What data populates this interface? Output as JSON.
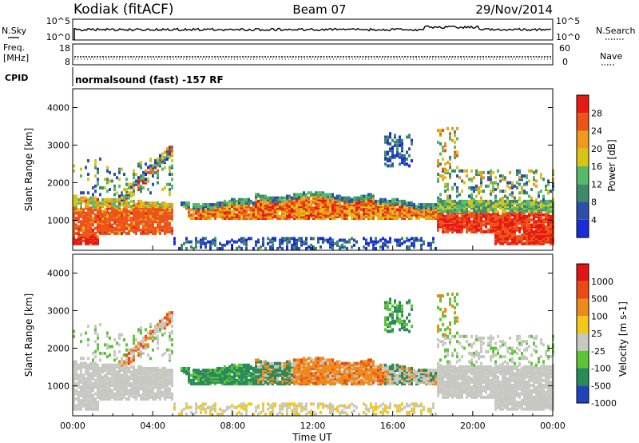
{
  "header": {
    "title": "Kodiak (fitACF)",
    "beam": "Beam 07",
    "date": "29/Nov/2014"
  },
  "info_panels": {
    "nsky": {
      "label": "N.Sky",
      "ticks": [
        "10^5",
        "10^0"
      ]
    },
    "nsearch": {
      "label": "N.Search",
      "ticks": [
        "10^5",
        "10^0"
      ]
    },
    "freq": {
      "label_line1": "Freq.",
      "label_line2": "[MHz]",
      "ticks": [
        "18",
        "8"
      ]
    },
    "nave": {
      "label": "Nave",
      "ticks": [
        "60",
        "0"
      ]
    },
    "cpid": {
      "label": "CPID",
      "value": "normalsound (fast) -157 RF"
    }
  },
  "chart_data": [
    {
      "type": "heatmap",
      "name": "power",
      "xlabel": "Time UT",
      "ylabel": "Slant Range [km]",
      "xlim": [
        0,
        24
      ],
      "ylim": [
        200,
        4500
      ],
      "x_ticks": [
        "00:00",
        "04:00",
        "08:00",
        "12:00",
        "16:00",
        "20:00",
        "00:00"
      ],
      "y_ticks": [
        1000,
        2000,
        3000,
        4000
      ],
      "colorbar": {
        "label": "Power [dB]",
        "ticks": [
          4,
          8,
          12,
          16,
          20,
          24,
          28
        ]
      }
    },
    {
      "type": "heatmap",
      "name": "velocity",
      "xlabel": "Time UT",
      "ylabel": "Slant Range [km]",
      "xlim": [
        0,
        24
      ],
      "ylim": [
        200,
        4500
      ],
      "x_ticks": [
        "00:00",
        "04:00",
        "08:00",
        "12:00",
        "16:00",
        "20:00",
        "00:00"
      ],
      "y_ticks": [
        1000,
        2000,
        3000,
        4000
      ],
      "colorbar": {
        "label": "Velocity [m s-1]",
        "ticks": [
          1000,
          500,
          100,
          25,
          -25,
          -100,
          -500,
          -1000
        ]
      }
    }
  ],
  "colors": {
    "power_scale": [
      "#1a2cd6",
      "#2c50a8",
      "#3e8a6a",
      "#55b86a",
      "#d8c414",
      "#ee9a1a",
      "#ec5418",
      "#e61a12"
    ],
    "velocity_scale": [
      "#2044b8",
      "#2a8a5a",
      "#5cc436",
      "#c8c8c2",
      "#f2c81a",
      "#ee8a1a",
      "#ea4a14",
      "#e01616"
    ]
  }
}
